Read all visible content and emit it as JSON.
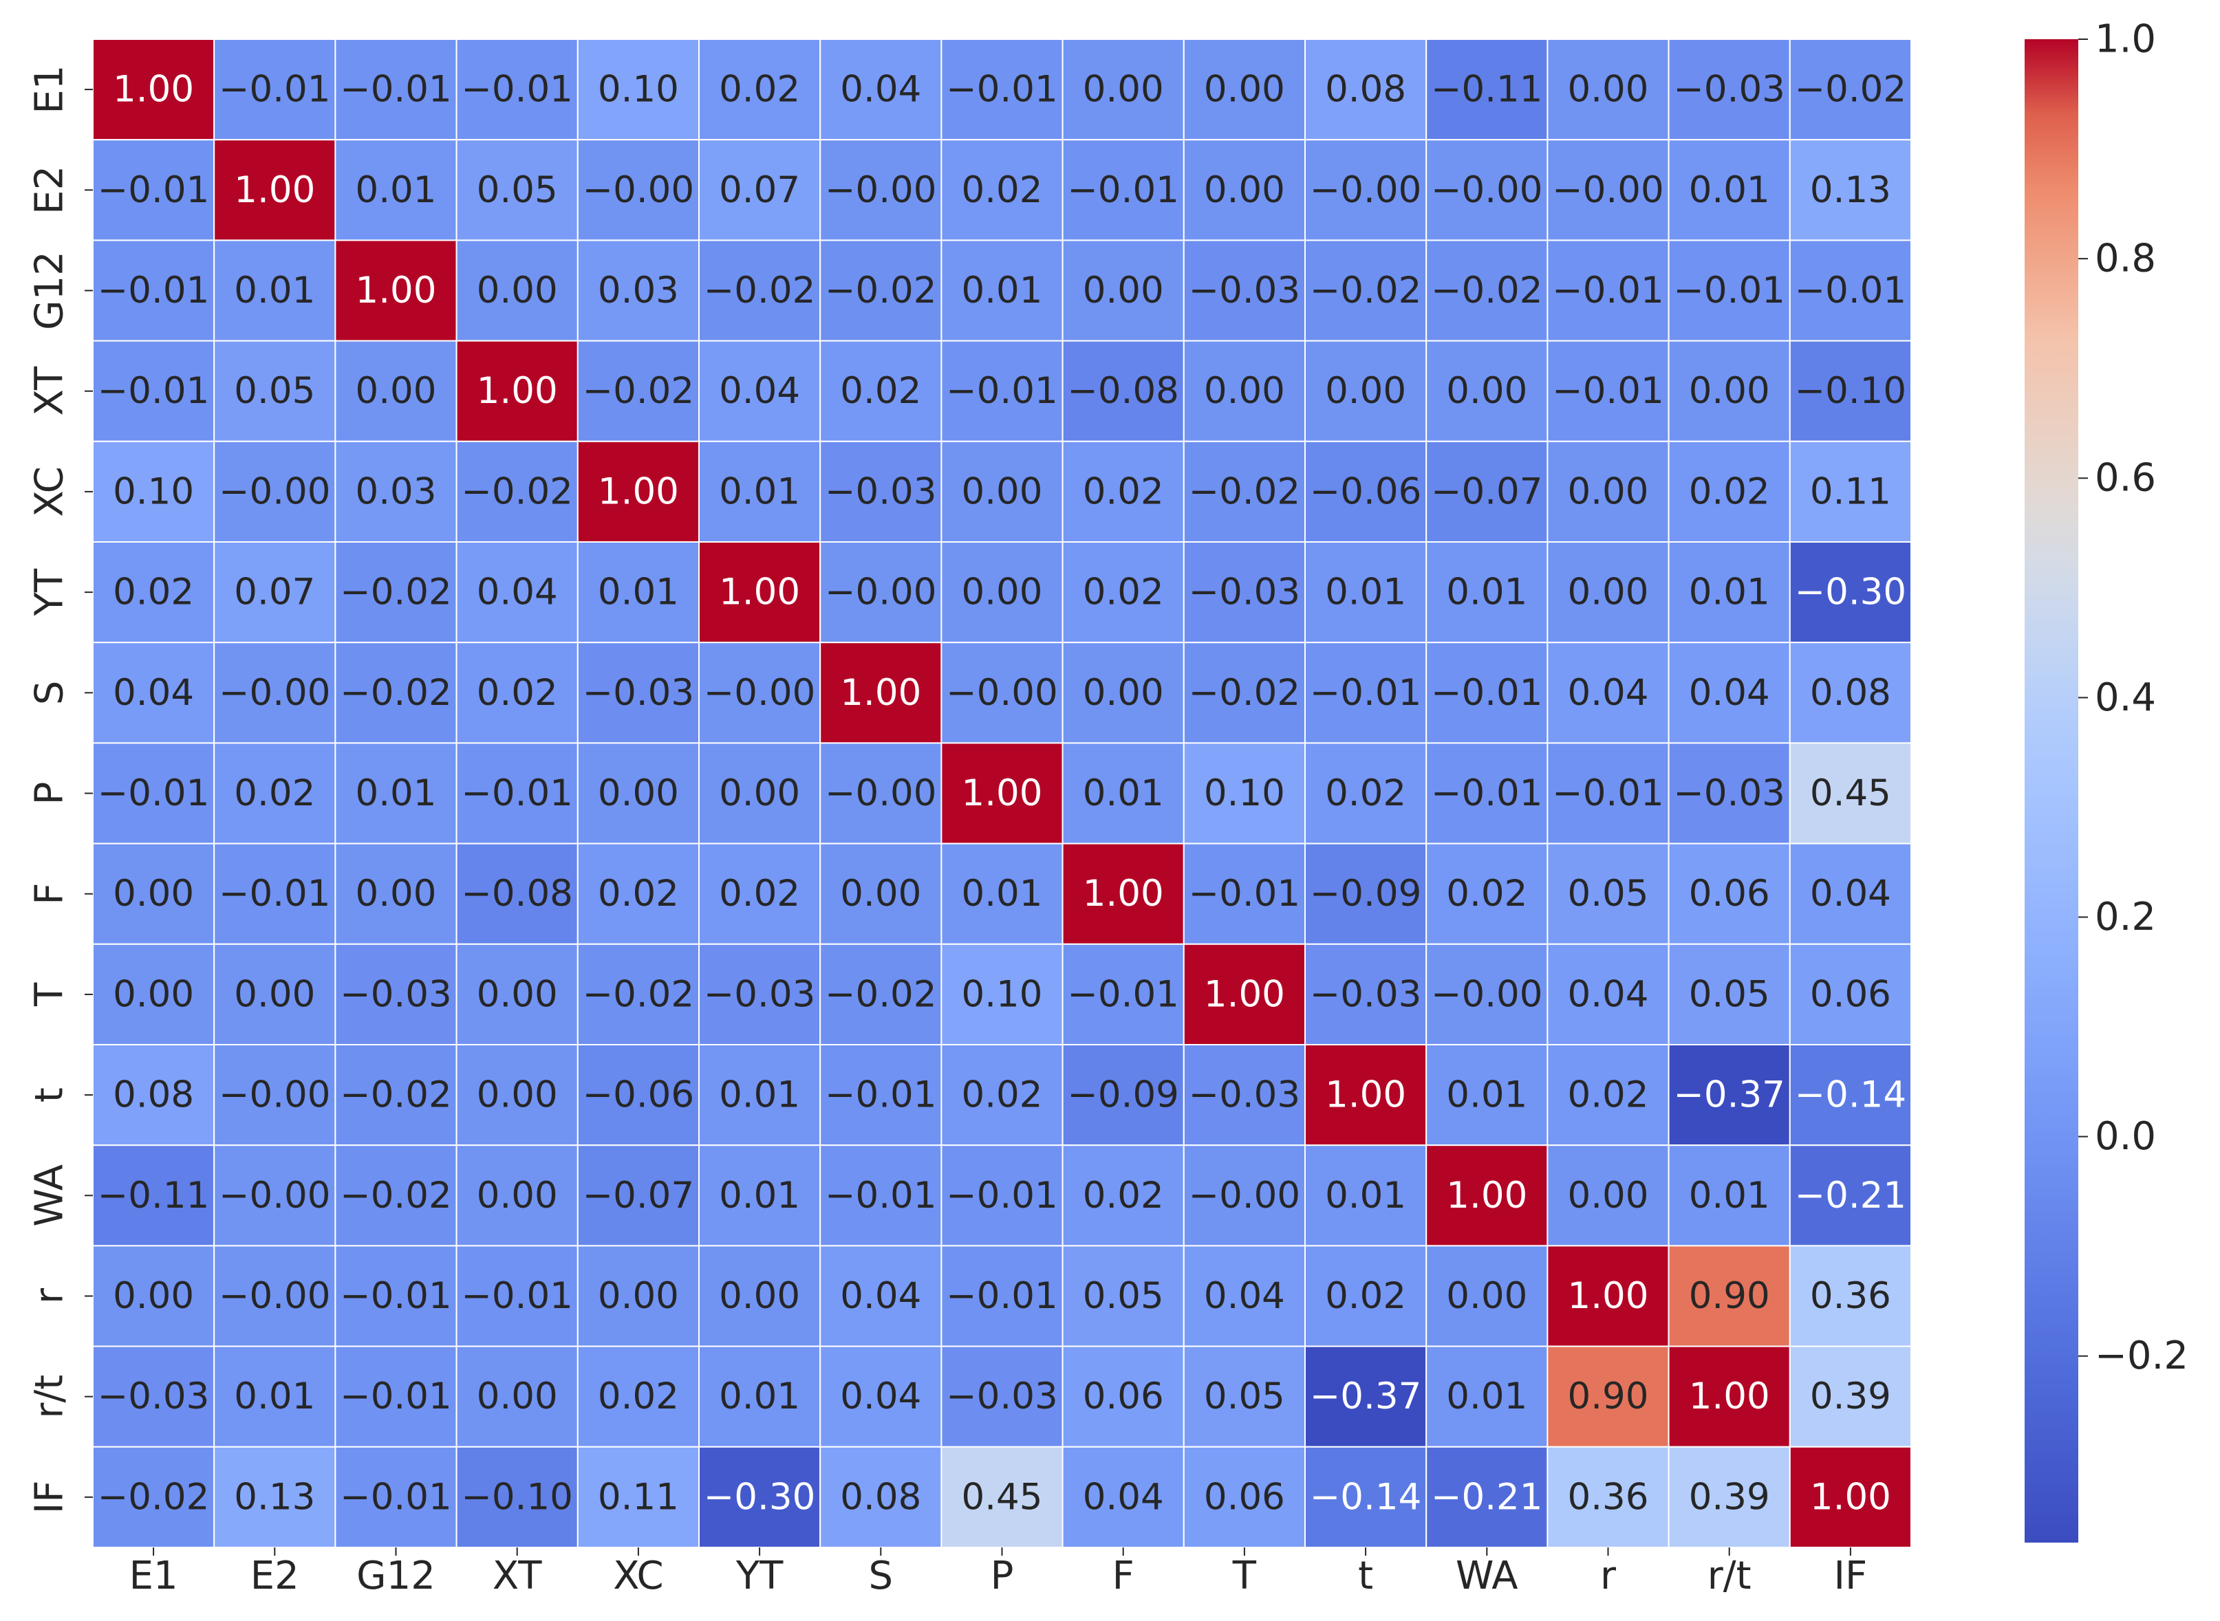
{
  "chart_data": {
    "type": "heatmap",
    "title": "",
    "xlabel": "",
    "ylabel": "",
    "colormap": "coolwarm",
    "value_format": "2 decimals",
    "labels": [
      "E1",
      "E2",
      "G12",
      "XT",
      "XC",
      "YT",
      "S",
      "P",
      "F",
      "T",
      "t",
      "WA",
      "r",
      "r/t",
      "IF"
    ],
    "matrix": [
      [
        1.0,
        -0.01,
        -0.01,
        -0.01,
        0.1,
        0.02,
        0.04,
        -0.01,
        0.0,
        0.0,
        0.08,
        -0.11,
        0.0,
        -0.03,
        -0.02
      ],
      [
        -0.01,
        1.0,
        0.01,
        0.05,
        -0.0,
        0.07,
        -0.0,
        0.02,
        -0.01,
        0.0,
        -0.0,
        -0.0,
        -0.0,
        0.01,
        0.13
      ],
      [
        -0.01,
        0.01,
        1.0,
        0.0,
        0.03,
        -0.02,
        -0.02,
        0.01,
        0.0,
        -0.03,
        -0.02,
        -0.02,
        -0.01,
        -0.01,
        -0.01
      ],
      [
        -0.01,
        0.05,
        0.0,
        1.0,
        -0.02,
        0.04,
        0.02,
        -0.01,
        -0.08,
        0.0,
        0.0,
        0.0,
        -0.01,
        0.0,
        -0.1
      ],
      [
        0.1,
        -0.0,
        0.03,
        -0.02,
        1.0,
        0.01,
        -0.03,
        0.0,
        0.02,
        -0.02,
        -0.06,
        -0.07,
        0.0,
        0.02,
        0.11
      ],
      [
        0.02,
        0.07,
        -0.02,
        0.04,
        0.01,
        1.0,
        -0.0,
        0.0,
        0.02,
        -0.03,
        0.01,
        0.01,
        0.0,
        0.01,
        -0.3
      ],
      [
        0.04,
        -0.0,
        -0.02,
        0.02,
        -0.03,
        -0.0,
        1.0,
        -0.0,
        0.0,
        -0.02,
        -0.01,
        -0.01,
        0.04,
        0.04,
        0.08
      ],
      [
        -0.01,
        0.02,
        0.01,
        -0.01,
        0.0,
        0.0,
        -0.0,
        1.0,
        0.01,
        0.1,
        0.02,
        -0.01,
        -0.01,
        -0.03,
        0.45
      ],
      [
        0.0,
        -0.01,
        0.0,
        -0.08,
        0.02,
        0.02,
        0.0,
        0.01,
        1.0,
        -0.01,
        -0.09,
        0.02,
        0.05,
        0.06,
        0.04
      ],
      [
        0.0,
        0.0,
        -0.03,
        0.0,
        -0.02,
        -0.03,
        -0.02,
        0.1,
        -0.01,
        1.0,
        -0.03,
        -0.0,
        0.04,
        0.05,
        0.06
      ],
      [
        0.08,
        -0.0,
        -0.02,
        0.0,
        -0.06,
        0.01,
        -0.01,
        0.02,
        -0.09,
        -0.03,
        1.0,
        0.01,
        0.02,
        -0.37,
        -0.14
      ],
      [
        -0.11,
        -0.0,
        -0.02,
        0.0,
        -0.07,
        0.01,
        -0.01,
        -0.01,
        0.02,
        -0.0,
        0.01,
        1.0,
        0.0,
        0.01,
        -0.21
      ],
      [
        0.0,
        -0.0,
        -0.01,
        -0.01,
        0.0,
        0.0,
        0.04,
        -0.01,
        0.05,
        0.04,
        0.02,
        0.0,
        1.0,
        0.9,
        0.36
      ],
      [
        -0.03,
        0.01,
        -0.01,
        0.0,
        0.02,
        0.01,
        0.04,
        -0.03,
        0.06,
        0.05,
        -0.37,
        0.01,
        0.9,
        1.0,
        0.39
      ],
      [
        -0.02,
        0.13,
        -0.01,
        -0.1,
        0.11,
        -0.3,
        0.08,
        0.45,
        0.04,
        0.06,
        -0.14,
        -0.21,
        0.36,
        0.39,
        1.0
      ]
    ],
    "colorbar": {
      "vmin": -0.37,
      "vmax": 1.0,
      "ticks": [
        1.0,
        0.8,
        0.6,
        0.4,
        0.2,
        0.0,
        -0.2
      ],
      "tick_labels": [
        "1.0",
        "0.8",
        "0.6",
        "0.4",
        "0.2",
        "0.0",
        "−0.2"
      ]
    },
    "grid": true,
    "legend": "colorbar-right"
  }
}
